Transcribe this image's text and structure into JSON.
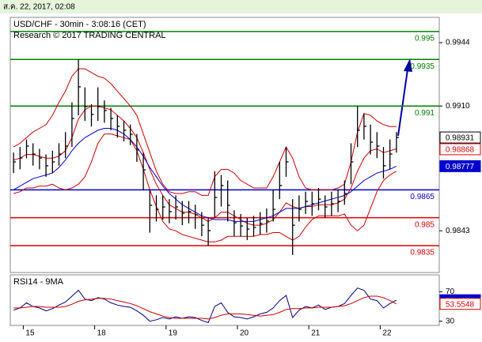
{
  "header": {
    "timestamp": "ส.ค. 22, 2017, 02:08"
  },
  "chart_data": [
    {
      "type": "ohlc",
      "title": "USD/CHF - 30min - 3:08:16 (CET)",
      "subtitle": "Research © 2017 TRADING CENTRAL",
      "categories": [
        null,
        null,
        "15",
        null,
        null,
        null,
        null,
        null,
        null,
        null,
        null,
        null,
        null,
        "18",
        null,
        null,
        null,
        null,
        null,
        null,
        null,
        null,
        null,
        null,
        "19",
        null,
        null,
        null,
        null,
        null,
        null,
        null,
        null,
        null,
        null,
        "20",
        null,
        null,
        null,
        null,
        null,
        null,
        null,
        null,
        null,
        null,
        "21",
        null,
        null,
        null,
        null,
        null,
        null,
        null,
        null,
        null,
        null,
        "22",
        null,
        null
      ],
      "high": [
        0.9885,
        0.9888,
        0.9892,
        0.989,
        0.9887,
        0.9884,
        0.9886,
        0.989,
        0.9896,
        0.9912,
        0.9935,
        0.992,
        0.9911,
        0.992,
        0.9913,
        0.9909,
        0.9905,
        0.9902,
        0.99,
        0.9895,
        0.9885,
        0.9865,
        0.9862,
        0.9862,
        0.986,
        0.9862,
        0.9859,
        0.9859,
        0.9857,
        0.9853,
        0.985,
        0.9875,
        0.9873,
        0.987,
        0.9854,
        0.9852,
        0.985,
        0.9851,
        0.9853,
        0.9855,
        0.9865,
        0.988,
        0.9888,
        0.986,
        0.9862,
        0.9864,
        0.9864,
        0.9866,
        0.9862,
        0.9864,
        0.9865,
        0.987,
        0.989,
        0.991,
        0.9906,
        0.99,
        0.9896,
        0.9888,
        0.9892,
        0.9896
      ],
      "low": [
        0.9874,
        0.9876,
        0.9882,
        0.9878,
        0.9876,
        0.9872,
        0.9874,
        0.9878,
        0.9882,
        0.9888,
        0.9905,
        0.9902,
        0.9899,
        0.9902,
        0.9901,
        0.9897,
        0.9893,
        0.9891,
        0.9889,
        0.988,
        0.9865,
        0.9842,
        0.9848,
        0.9849,
        0.9847,
        0.9849,
        0.9846,
        0.9847,
        0.9844,
        0.984,
        0.9835,
        0.985,
        0.9856,
        0.9848,
        0.984,
        0.984,
        0.9838,
        0.984,
        0.9841,
        0.9842,
        0.9848,
        0.986,
        0.9872,
        0.983,
        0.9848,
        0.9852,
        0.9851,
        0.9854,
        0.985,
        0.9851,
        0.9853,
        0.9857,
        0.9868,
        0.9888,
        0.9892,
        0.9884,
        0.9882,
        0.9871,
        0.9876,
        0.9885
      ],
      "close": [
        0.988,
        0.98821,
        0.98885,
        0.98842,
        0.98821,
        0.98779,
        0.988,
        0.98842,
        0.98885,
        0.99033,
        0.99203,
        0.99097,
        0.99055,
        0.99097,
        0.99076,
        0.99033,
        0.98991,
        0.9897,
        0.98948,
        0.98864,
        0.98757,
        0.98567,
        0.98545,
        0.98558,
        0.98533,
        0.98558,
        0.98524,
        0.98533,
        0.98516,
        0.9846,
        0.98431,
        0.98609,
        0.98673,
        0.98567,
        0.98473,
        0.98456,
        0.98439,
        0.98448,
        0.98469,
        0.98482,
        0.98545,
        0.98673,
        0.988,
        0.9846,
        0.98545,
        0.98588,
        0.98575,
        0.986,
        0.98558,
        0.98575,
        0.98588,
        0.9863,
        0.988,
        0.9897,
        0.98991,
        0.98906,
        0.98885,
        0.98779,
        0.98842,
        0.98931
      ],
      "bar_color": "#000000",
      "overlays": [
        {
          "color": "#cc0000",
          "values": [
            0.9888,
            0.989,
            0.9893,
            0.9896,
            0.9898,
            0.99,
            0.9905,
            0.9912,
            0.9918,
            0.9926,
            0.993,
            0.993,
            0.9928,
            0.9926,
            0.9925,
            0.9922,
            0.9918,
            0.9914,
            0.991,
            0.9905,
            0.9895,
            0.9885,
            0.9875,
            0.9868,
            0.9864,
            0.9863,
            0.9863,
            0.9864,
            0.9864,
            0.9862,
            0.9862,
            0.9872,
            0.9876,
            0.9876,
            0.9874,
            0.987,
            0.9868,
            0.9866,
            0.9866,
            0.9866,
            0.9872,
            0.988,
            0.9888,
            0.9882,
            0.9872,
            0.9866,
            0.9865,
            0.9865,
            0.9865,
            0.9865,
            0.9866,
            0.9868,
            0.988,
            0.9896,
            0.9906,
            0.9905,
            0.9902,
            0.99,
            0.9899,
            0.9899
          ]
        },
        {
          "color": "#cc0000",
          "values": [
            0.9863,
            0.9864,
            0.9866,
            0.9866,
            0.9867,
            0.9867,
            0.9868,
            0.9866,
            0.9865,
            0.9866,
            0.9868,
            0.9872,
            0.988,
            0.989,
            0.9895,
            0.9895,
            0.9894,
            0.9893,
            0.9892,
            0.9886,
            0.9876,
            0.9865,
            0.9856,
            0.9848,
            0.9844,
            0.9843,
            0.9841,
            0.984,
            0.9839,
            0.9838,
            0.9837,
            0.9837,
            0.9838,
            0.984,
            0.984,
            0.984,
            0.984,
            0.984,
            0.9841,
            0.9841,
            0.9842,
            0.9842,
            0.984,
            0.9838,
            0.984,
            0.9845,
            0.9849,
            0.9851,
            0.9851,
            0.9851,
            0.9851,
            0.9852,
            0.9846,
            0.9843,
            0.9846,
            0.9855,
            0.9864,
            0.987,
            0.9873,
            0.9875
          ]
        },
        {
          "color": "#cc0000",
          "values": [
            0.9881,
            0.9882,
            0.9884,
            0.9884,
            0.9883,
            0.9882,
            0.9882,
            0.9883,
            0.9886,
            0.9893,
            0.9903,
            0.9908,
            0.991,
            0.991,
            0.9909,
            0.9908,
            0.9905,
            0.9902,
            0.9898,
            0.9893,
            0.9885,
            0.9876,
            0.9868,
            0.9862,
            0.9857,
            0.9855,
            0.9853,
            0.9853,
            0.9852,
            0.985,
            0.9848,
            0.985,
            0.9853,
            0.9853,
            0.9851,
            0.9849,
            0.9847,
            0.9846,
            0.9846,
            0.9847,
            0.9849,
            0.9853,
            0.9858,
            0.9856,
            0.9855,
            0.9856,
            0.9856,
            0.9857,
            0.9857,
            0.9857,
            0.9858,
            0.986,
            0.9866,
            0.9875,
            0.9882,
            0.9886,
            0.9887,
            0.9885,
            0.9886,
            0.9887
          ]
        },
        {
          "color": "#0000cc",
          "values": [
            0.9865,
            0.9867,
            0.9869,
            0.9871,
            0.9872,
            0.9873,
            0.9874,
            0.9877,
            0.9881,
            0.9886,
            0.989,
            0.9893,
            0.9895,
            0.9897,
            0.9898,
            0.9898,
            0.9897,
            0.9895,
            0.9892,
            0.9888,
            0.9883,
            0.9877,
            0.9872,
            0.9867,
            0.9863,
            0.986,
            0.9857,
            0.9855,
            0.9853,
            0.9851,
            0.985,
            0.9849,
            0.9849,
            0.9849,
            0.9848,
            0.9848,
            0.9848,
            0.9848,
            0.9849,
            0.985,
            0.9851,
            0.9853,
            0.9855,
            0.9855,
            0.9855,
            0.9856,
            0.9857,
            0.9858,
            0.9859,
            0.986,
            0.9861,
            0.9862,
            0.9864,
            0.9867,
            0.987,
            0.9872,
            0.9874,
            0.9875,
            0.9876,
            0.98777
          ]
        }
      ],
      "levels": [
        {
          "value": 0.995,
          "color": "#008000"
        },
        {
          "value": 0.9935,
          "color": "#008000"
        },
        {
          "value": 0.991,
          "color": "#008000"
        },
        {
          "value": 0.9865,
          "color": "#0000cc"
        },
        {
          "value": 0.985,
          "color": "#e00000"
        },
        {
          "value": 0.9835,
          "color": "#e00000"
        }
      ],
      "markers": [
        {
          "value": 0.98931,
          "border": "#000000",
          "fill": "#ffffff",
          "text_color": "#000000"
        },
        {
          "value": 0.98868,
          "border": "#e00000",
          "fill": "#ffffff",
          "text_color": "#e00000"
        },
        {
          "value": 0.98777,
          "border": "#0000cc",
          "fill": "#0000cc",
          "text_color": "#ffffff"
        }
      ],
      "ylim": [
        0.98206,
        0.99576
      ],
      "yticks": [
        0.9944,
        {
          "value": 0.991,
          "label": "0.9910"
        },
        0.9843
      ]
    },
    {
      "type": "line",
      "title": "RSI14 - 9MA",
      "series": [
        {
          "color": "#000080",
          "values": [
            45,
            48,
            55,
            50,
            48,
            44,
            47,
            52,
            56,
            64,
            72,
            60,
            58,
            62,
            60,
            55,
            52,
            50,
            49,
            44,
            38,
            30,
            32,
            35,
            33,
            36,
            34,
            36,
            35,
            31,
            28,
            50,
            55,
            42,
            36,
            35,
            33,
            36,
            40,
            42,
            48,
            58,
            65,
            35,
            45,
            50,
            48,
            52,
            46,
            49,
            50,
            54,
            65,
            75,
            72,
            60,
            58,
            48,
            54,
            58.4601
          ]
        },
        {
          "color": "#cc0000",
          "values": [
            48,
            48,
            49,
            50,
            50,
            49,
            49,
            49,
            50,
            53,
            57,
            59,
            60,
            61,
            61,
            60,
            58,
            56,
            54,
            51,
            47,
            43,
            40,
            37,
            35,
            34,
            34,
            34,
            34,
            34,
            33,
            35,
            38,
            40,
            40,
            40,
            39,
            38,
            37,
            38,
            39,
            42,
            46,
            47,
            47,
            48,
            48,
            49,
            49,
            49,
            50,
            51,
            54,
            58,
            62,
            64,
            64,
            62,
            58,
            53.5548
          ]
        }
      ],
      "markers": [
        {
          "value": 58.4601,
          "border": "#0000cc",
          "fill": "#0000cc",
          "text_color": "#ffffff"
        },
        {
          "value": 53.5548,
          "border": "#e00000",
          "fill": "#ffffff",
          "text_color": "#e00000"
        }
      ],
      "ylim": [
        24.3,
        92.9
      ],
      "yticks": [
        70,
        30
      ]
    }
  ]
}
